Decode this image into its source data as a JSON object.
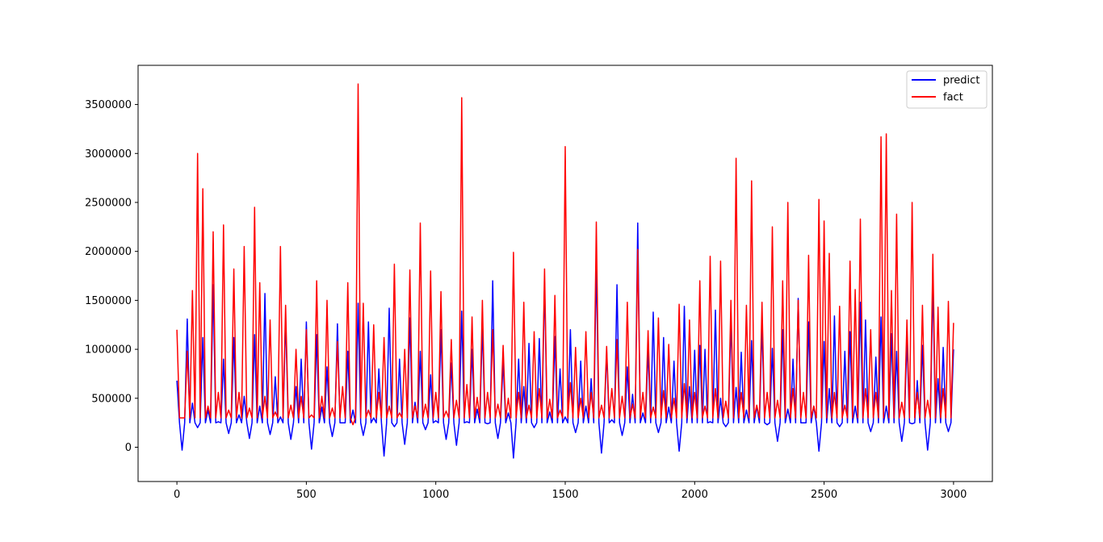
{
  "chart_data": {
    "type": "line",
    "title": "",
    "xlabel": "",
    "ylabel": "",
    "xlim": [
      -150,
      3150
    ],
    "ylim": [
      -350000,
      3900000
    ],
    "x_ticks": [
      0,
      500,
      1000,
      1500,
      2000,
      2500,
      3000
    ],
    "x_tick_labels": [
      "0",
      "500",
      "1000",
      "1500",
      "2000",
      "2500",
      "3000"
    ],
    "y_ticks": [
      0,
      500000,
      1000000,
      1500000,
      2000000,
      2500000,
      3000000,
      3500000
    ],
    "y_tick_labels": [
      "0",
      "500000",
      "1000000",
      "1500000",
      "2000000",
      "2500000",
      "3000000",
      "3500000"
    ],
    "grid": false,
    "legend_position": "top-right",
    "series": [
      {
        "name": "predict",
        "color": "#0000ff",
        "x": [
          0,
          20,
          40,
          60,
          80,
          100,
          120,
          140,
          160,
          180,
          200,
          220,
          240,
          260,
          280,
          300,
          320,
          340,
          360,
          380,
          400,
          420,
          440,
          460,
          480,
          500,
          520,
          540,
          560,
          580,
          600,
          620,
          640,
          660,
          680,
          700,
          720,
          740,
          760,
          780,
          800,
          820,
          840,
          860,
          880,
          900,
          920,
          940,
          960,
          980,
          1000,
          1020,
          1040,
          1060,
          1080,
          1100,
          1120,
          1140,
          1160,
          1180,
          1200,
          1220,
          1240,
          1260,
          1280,
          1300,
          1320,
          1340,
          1360,
          1380,
          1400,
          1420,
          1440,
          1460,
          1480,
          1500,
          1520,
          1540,
          1560,
          1580,
          1600,
          1620,
          1640,
          1660,
          1680,
          1700,
          1720,
          1740,
          1760,
          1780,
          1800,
          1820,
          1840,
          1860,
          1880,
          1900,
          1920,
          1940,
          1960,
          1980,
          2000,
          2020,
          2040,
          2060,
          2080,
          2100,
          2120,
          2140,
          2160,
          2180,
          2200,
          2220,
          2240,
          2260,
          2280,
          2300,
          2320,
          2340,
          2360,
          2380,
          2400,
          2420,
          2440,
          2460,
          2480,
          2500,
          2520,
          2540,
          2560,
          2580,
          2600,
          2620,
          2640,
          2660,
          2680,
          2700,
          2720,
          2740,
          2760,
          2780,
          2800,
          2820,
          2840,
          2860,
          2880,
          2900,
          2920,
          2940,
          2960,
          2980,
          3000
        ],
        "values": [
          680000,
          -30000,
          1310000,
          450000,
          200000,
          1120000,
          380000,
          1660000,
          260000,
          900000,
          140000,
          1120000,
          330000,
          520000,
          90000,
          1150000,
          420000,
          1570000,
          130000,
          720000,
          310000,
          1320000,
          80000,
          620000,
          900000,
          1280000,
          -20000,
          1150000,
          410000,
          820000,
          110000,
          1260000,
          250000,
          980000,
          380000,
          1470000,
          120000,
          1280000,
          300000,
          800000,
          -90000,
          1420000,
          210000,
          900000,
          30000,
          1320000,
          460000,
          980000,
          180000,
          740000,
          270000,
          1200000,
          80000,
          860000,
          20000,
          1390000,
          260000,
          1000000,
          390000,
          1240000,
          240000,
          1700000,
          90000,
          880000,
          350000,
          -110000,
          900000,
          620000,
          1060000,
          200000,
          1110000,
          1680000,
          360000,
          1130000,
          800000,
          310000,
          1200000,
          150000,
          880000,
          420000,
          700000,
          1870000,
          -60000,
          970000,
          280000,
          1660000,
          120000,
          820000,
          540000,
          2290000,
          350000,
          1000000,
          1380000,
          150000,
          1120000,
          410000,
          880000,
          -40000,
          1440000,
          620000,
          990000,
          1040000,
          1000000,
          260000,
          1400000,
          500000,
          210000,
          1300000,
          610000,
          970000,
          380000,
          1090000,
          420000,
          1250000,
          230000,
          1010000,
          60000,
          1200000,
          390000,
          900000,
          1520000,
          250000,
          1280000,
          420000,
          -40000,
          1080000,
          600000,
          1340000,
          210000,
          980000,
          1180000,
          420000,
          1480000,
          1300000,
          160000,
          920000,
          1330000,
          420000,
          1160000,
          980000,
          60000,
          1100000,
          240000,
          680000,
          1040000,
          -30000,
          1680000,
          700000,
          1020000,
          160000,
          1000000
        ]
      },
      {
        "name": "fact",
        "color": "#ff0000",
        "x": [
          0,
          20,
          40,
          60,
          80,
          100,
          120,
          140,
          160,
          180,
          200,
          220,
          240,
          260,
          280,
          300,
          320,
          340,
          360,
          380,
          400,
          420,
          440,
          460,
          480,
          500,
          520,
          540,
          560,
          580,
          600,
          620,
          640,
          660,
          680,
          700,
          720,
          740,
          760,
          780,
          800,
          820,
          840,
          860,
          880,
          900,
          920,
          940,
          960,
          980,
          1000,
          1020,
          1040,
          1060,
          1080,
          1100,
          1120,
          1140,
          1160,
          1180,
          1200,
          1220,
          1240,
          1260,
          1280,
          1300,
          1320,
          1340,
          1360,
          1380,
          1400,
          1420,
          1440,
          1460,
          1480,
          1500,
          1520,
          1540,
          1560,
          1580,
          1600,
          1620,
          1640,
          1660,
          1680,
          1700,
          1720,
          1740,
          1760,
          1780,
          1800,
          1820,
          1840,
          1860,
          1880,
          1900,
          1920,
          1940,
          1960,
          1980,
          2000,
          2020,
          2040,
          2060,
          2080,
          2100,
          2120,
          2140,
          2160,
          2180,
          2200,
          2220,
          2240,
          2260,
          2280,
          2300,
          2320,
          2340,
          2360,
          2380,
          2400,
          2420,
          2440,
          2460,
          2480,
          2500,
          2520,
          2540,
          2560,
          2580,
          2600,
          2620,
          2640,
          2660,
          2680,
          2700,
          2720,
          2740,
          2760,
          2780,
          2800,
          2820,
          2840,
          2860,
          2880,
          2900,
          2920,
          2940,
          2960,
          2980,
          3000
        ],
        "values": [
          1200000,
          300000,
          980000,
          1600000,
          3000000,
          2640000,
          420000,
          2200000,
          560000,
          2270000,
          380000,
          1820000,
          560000,
          2050000,
          400000,
          2450000,
          1680000,
          520000,
          1300000,
          360000,
          2050000,
          1450000,
          430000,
          1000000,
          520000,
          1200000,
          330000,
          1700000,
          520000,
          1500000,
          400000,
          1080000,
          620000,
          1680000,
          230000,
          3710000,
          1470000,
          380000,
          1250000,
          560000,
          1120000,
          420000,
          1870000,
          350000,
          1000000,
          1810000,
          420000,
          2290000,
          440000,
          1800000,
          560000,
          1590000,
          370000,
          1100000,
          480000,
          3570000,
          640000,
          1330000,
          510000,
          1500000,
          560000,
          1200000,
          440000,
          1040000,
          500000,
          1990000,
          560000,
          1480000,
          430000,
          1180000,
          600000,
          1820000,
          490000,
          1550000,
          380000,
          3070000,
          660000,
          1020000,
          500000,
          1180000,
          560000,
          2300000,
          430000,
          1030000,
          600000,
          1100000,
          520000,
          1480000,
          440000,
          2020000,
          560000,
          1190000,
          410000,
          1320000,
          580000,
          1050000,
          500000,
          1460000,
          650000,
          1300000,
          560000,
          1700000,
          420000,
          1950000,
          600000,
          1900000,
          470000,
          1500000,
          2950000,
          560000,
          1450000,
          2720000,
          430000,
          1480000,
          560000,
          2250000,
          480000,
          1700000,
          2500000,
          600000,
          1500000,
          560000,
          1960000,
          420000,
          2530000,
          2310000,
          1980000,
          560000,
          1440000,
          430000,
          1900000,
          1610000,
          2330000,
          600000,
          1200000,
          560000,
          3170000,
          3200000,
          1600000,
          2380000,
          460000,
          1300000,
          2500000,
          560000,
          1450000,
          480000,
          1970000,
          1430000,
          600000,
          1490000,
          1270000
        ]
      }
    ]
  }
}
